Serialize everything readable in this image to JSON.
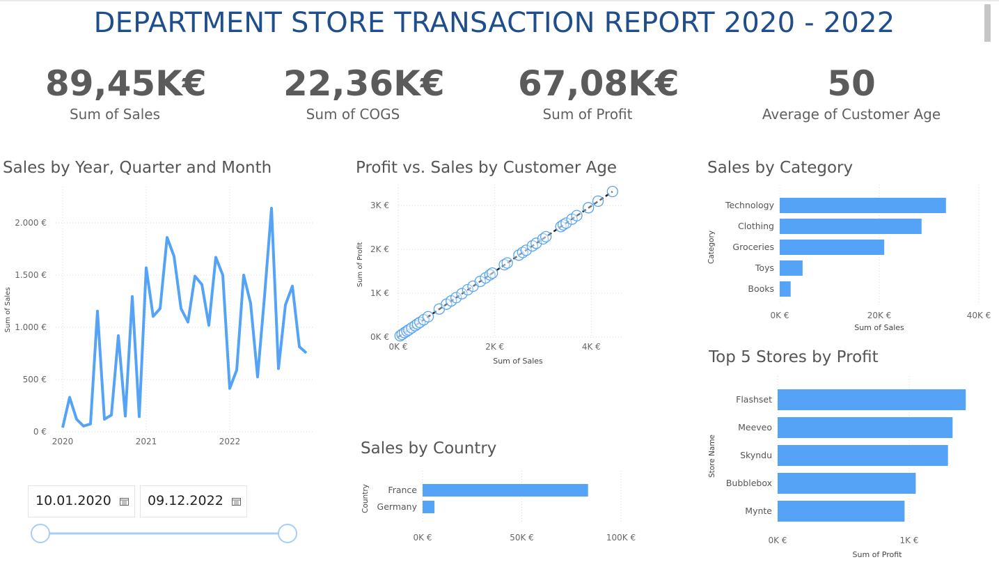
{
  "title": "DEPARTMENT STORE TRANSACTION REPORT 2020 - 2022",
  "kpis": [
    {
      "value": "89,45K€",
      "label": "Sum of Sales"
    },
    {
      "value": "22,36K€",
      "label": "Sum of COGS"
    },
    {
      "value": "67,08K€",
      "label": "Sum of Profit"
    },
    {
      "value": "50",
      "label": "Average of Customer Age"
    }
  ],
  "colors": {
    "bar": "#54a3f7",
    "line": "#54a3f7",
    "title": "#1f4e8c",
    "kpi": "#5b5b5b"
  },
  "slicer": {
    "start": "10.01.2020",
    "end": "09.12.2022",
    "icon": "calendar-icon"
  },
  "chart_data": [
    {
      "id": "sales_time",
      "type": "line",
      "title": "Sales by Year, Quarter and Month",
      "xlabel": "",
      "ylabel": "Sum of Sales",
      "ylim": [
        0,
        2200
      ],
      "yticks": [
        {
          "v": 0,
          "label": "0 €"
        },
        {
          "v": 500,
          "label": "500 €"
        },
        {
          "v": 1000,
          "label": "1.000 €"
        },
        {
          "v": 1500,
          "label": "1.500 €"
        },
        {
          "v": 2000,
          "label": "2.000 €"
        }
      ],
      "xticks": [
        {
          "i": 0,
          "label": "2020"
        },
        {
          "i": 12,
          "label": "2021"
        },
        {
          "i": 24,
          "label": "2022"
        }
      ],
      "grid": true,
      "values": [
        40,
        330,
        120,
        55,
        75,
        1155,
        120,
        160,
        920,
        150,
        1295,
        145,
        1570,
        1105,
        1180,
        1860,
        1680,
        1180,
        1050,
        1490,
        1410,
        1020,
        1670,
        1500,
        415,
        590,
        1500,
        1230,
        525,
        1300,
        2140,
        605,
        1215,
        1395,
        815,
        755
      ]
    },
    {
      "id": "profit_vs_sales",
      "type": "scatter",
      "title": "Profit vs. Sales by Customer Age",
      "xlabel": "Sum of Sales",
      "ylabel": "Sum of Profit",
      "xlim": [
        0,
        4500
      ],
      "ylim": [
        0,
        3400
      ],
      "xticks": [
        {
          "v": 0,
          "label": "0K €"
        },
        {
          "v": 2000,
          "label": "2K €"
        },
        {
          "v": 4000,
          "label": "4K €"
        }
      ],
      "yticks": [
        {
          "v": 0,
          "label": "0K €"
        },
        {
          "v": 1000,
          "label": "1K €"
        },
        {
          "v": 2000,
          "label": "2K €"
        },
        {
          "v": 3000,
          "label": "3K €"
        }
      ],
      "trend_line": true,
      "points": [
        [
          40,
          30
        ],
        [
          80,
          60
        ],
        [
          130,
          100
        ],
        [
          180,
          135
        ],
        [
          220,
          165
        ],
        [
          280,
          210
        ],
        [
          350,
          260
        ],
        [
          400,
          300
        ],
        [
          450,
          335
        ],
        [
          530,
          395
        ],
        [
          620,
          465
        ],
        [
          850,
          640
        ],
        [
          1000,
          750
        ],
        [
          1100,
          825
        ],
        [
          1200,
          900
        ],
        [
          1320,
          990
        ],
        [
          1440,
          1080
        ],
        [
          1550,
          1160
        ],
        [
          1700,
          1270
        ],
        [
          1810,
          1350
        ],
        [
          1900,
          1420
        ],
        [
          1950,
          1460
        ],
        [
          2200,
          1650
        ],
        [
          2260,
          1690
        ],
        [
          2500,
          1870
        ],
        [
          2580,
          1930
        ],
        [
          2650,
          1980
        ],
        [
          2780,
          2080
        ],
        [
          2860,
          2140
        ],
        [
          3000,
          2240
        ],
        [
          3060,
          2290
        ],
        [
          3370,
          2520
        ],
        [
          3420,
          2560
        ],
        [
          3480,
          2600
        ],
        [
          3600,
          2690
        ],
        [
          3700,
          2770
        ],
        [
          3940,
          2950
        ],
        [
          4140,
          3100
        ],
        [
          4440,
          3320
        ]
      ]
    },
    {
      "id": "sales_by_category",
      "type": "bar",
      "title": "Sales by Category",
      "xlabel": "Sum of Sales",
      "ylabel": "Category",
      "xlim": [
        0,
        40000
      ],
      "xticks": [
        {
          "v": 0,
          "label": "0K €"
        },
        {
          "v": 20000,
          "label": "20K €"
        },
        {
          "v": 40000,
          "label": "40K €"
        }
      ],
      "categories": [
        "Technology",
        "Clothing",
        "Groceries",
        "Toys",
        "Books"
      ],
      "values": [
        33400,
        28500,
        21000,
        4600,
        2200
      ]
    },
    {
      "id": "sales_by_country",
      "type": "bar",
      "title": "Sales by Country",
      "xlabel": "",
      "ylabel": "Country",
      "xlim": [
        0,
        100000
      ],
      "xticks": [
        {
          "v": 0,
          "label": "0K €"
        },
        {
          "v": 50000,
          "label": "50K €"
        },
        {
          "v": 100000,
          "label": "100K €"
        }
      ],
      "categories": [
        "France",
        "Germany"
      ],
      "values": [
        83400,
        6000
      ]
    },
    {
      "id": "top_stores",
      "type": "bar",
      "title": "Top 5 Stores by Profit",
      "xlabel": "Sum of Profit",
      "ylabel": "Store Name",
      "xlim": [
        0,
        1450
      ],
      "xticks": [
        {
          "v": 0,
          "label": "0K €"
        },
        {
          "v": 1000,
          "label": "1K €"
        }
      ],
      "categories": [
        "Flashset",
        "Meeveo",
        "Skyndu",
        "Bubblebox",
        "Mynte"
      ],
      "values": [
        1430,
        1330,
        1295,
        1050,
        965
      ]
    }
  ]
}
